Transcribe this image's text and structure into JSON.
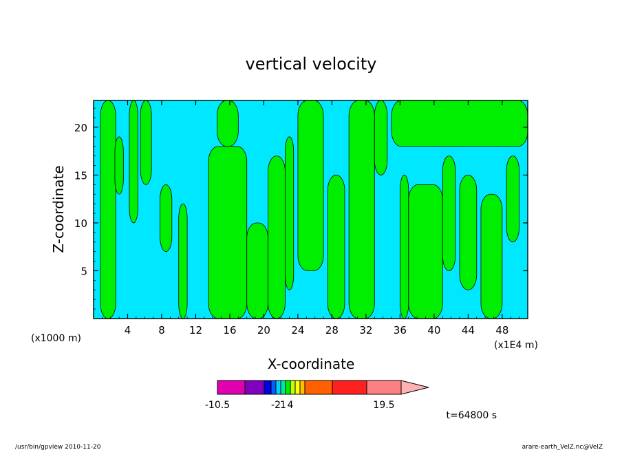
{
  "chart_data": {
    "type": "heatmap",
    "title": "vertical velocity",
    "xlabel": "X-coordinate",
    "ylabel": "Z-coordinate",
    "x_unit_left": "(x1000 m)",
    "x_unit_right": "(x1E4 m)",
    "xlim": [
      0,
      51
    ],
    "ylim": [
      0,
      22.8
    ],
    "x_ticks": [
      4,
      8,
      12,
      16,
      20,
      24,
      28,
      32,
      36,
      40,
      44,
      48
    ],
    "y_ticks": [
      5,
      10,
      15,
      20
    ],
    "background_color": "#00e8ff",
    "positive_color": "#00ee00",
    "positive_regions": [
      {
        "x": [
          0.8,
          2.6
        ],
        "y": [
          0,
          22.8
        ]
      },
      {
        "x": [
          2.5,
          3.5
        ],
        "y": [
          13,
          19
        ]
      },
      {
        "x": [
          4.2,
          5.2
        ],
        "y": [
          10,
          22.8
        ]
      },
      {
        "x": [
          5.5,
          6.8
        ],
        "y": [
          14,
          22.8
        ]
      },
      {
        "x": [
          7.8,
          9.2
        ],
        "y": [
          7,
          14
        ]
      },
      {
        "x": [
          10,
          11
        ],
        "y": [
          0,
          12
        ]
      },
      {
        "x": [
          13.5,
          18
        ],
        "y": [
          0,
          18
        ]
      },
      {
        "x": [
          14.5,
          17
        ],
        "y": [
          18,
          22.8
        ]
      },
      {
        "x": [
          18,
          20.5
        ],
        "y": [
          0,
          10
        ]
      },
      {
        "x": [
          20.5,
          22.5
        ],
        "y": [
          0,
          17
        ]
      },
      {
        "x": [
          22.5,
          23.5
        ],
        "y": [
          3,
          19
        ]
      },
      {
        "x": [
          24,
          27
        ],
        "y": [
          5,
          22.8
        ]
      },
      {
        "x": [
          27.5,
          29.5
        ],
        "y": [
          0,
          15
        ]
      },
      {
        "x": [
          30,
          33
        ],
        "y": [
          0,
          22.8
        ]
      },
      {
        "x": [
          33,
          34.5
        ],
        "y": [
          15,
          22.8
        ]
      },
      {
        "x": [
          36,
          37
        ],
        "y": [
          0,
          15
        ]
      },
      {
        "x": [
          37,
          41
        ],
        "y": [
          0,
          14
        ]
      },
      {
        "x": [
          41,
          42.5
        ],
        "y": [
          5,
          17
        ]
      },
      {
        "x": [
          43,
          45
        ],
        "y": [
          3,
          15
        ]
      },
      {
        "x": [
          45.5,
          48
        ],
        "y": [
          0,
          13
        ]
      },
      {
        "x": [
          48.5,
          50
        ],
        "y": [
          8,
          17
        ]
      },
      {
        "x": [
          35,
          51
        ],
        "y": [
          18,
          22.8
        ]
      }
    ],
    "colorbar": {
      "colors": [
        "#e000b0",
        "#8000c0",
        "#0000e0",
        "#0060ff",
        "#00d0ff",
        "#00e8a0",
        "#00ee00",
        "#c0ff00",
        "#ffff00",
        "#ffc000",
        "#ff6000",
        "#ff2020",
        "#ff8080",
        "#ffb0b0"
      ],
      "labels": [
        "-10.5",
        "-2",
        "1",
        "4",
        "19.5"
      ],
      "label_positions": [
        0,
        4,
        5.5,
        7,
        12.5
      ]
    },
    "time_label": "t=64800 s"
  },
  "footer": {
    "left": "/usr/bin/gpview  2010-11-20",
    "right": "arare-earth_VelZ.nc@VelZ"
  }
}
